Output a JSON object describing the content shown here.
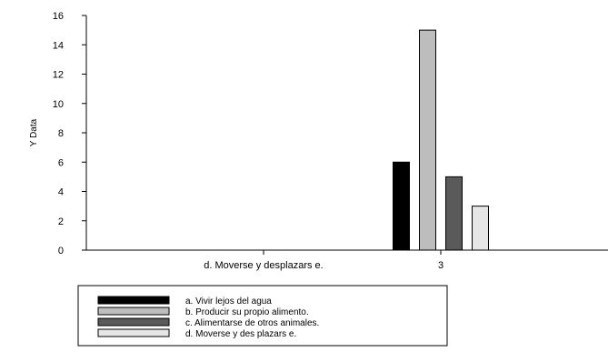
{
  "chart_data": {
    "type": "bar",
    "ylabel": "Y Data",
    "xlabel": "",
    "ylim": [
      0,
      16
    ],
    "yticks": [
      0,
      2,
      4,
      6,
      8,
      10,
      12,
      14,
      16
    ],
    "x_tick_labels": [
      "d. Moverse y desplazars e.",
      "3"
    ],
    "categories": [
      "3"
    ],
    "series": [
      {
        "name": "a. Vivir lejos del agua",
        "values": [
          6
        ],
        "color": "#000000"
      },
      {
        "name": "b. Producir su propio alimento.",
        "values": [
          15
        ],
        "color": "#bdbdbd"
      },
      {
        "name": "c. Alimentarse de otros animales.",
        "values": [
          5
        ],
        "color": "#5a5a5a"
      },
      {
        "name": "d. Moverse y des plazars e.",
        "values": [
          3
        ],
        "color": "#e6e6e6"
      }
    ],
    "grid": false,
    "legend_position": "bottom-left"
  }
}
